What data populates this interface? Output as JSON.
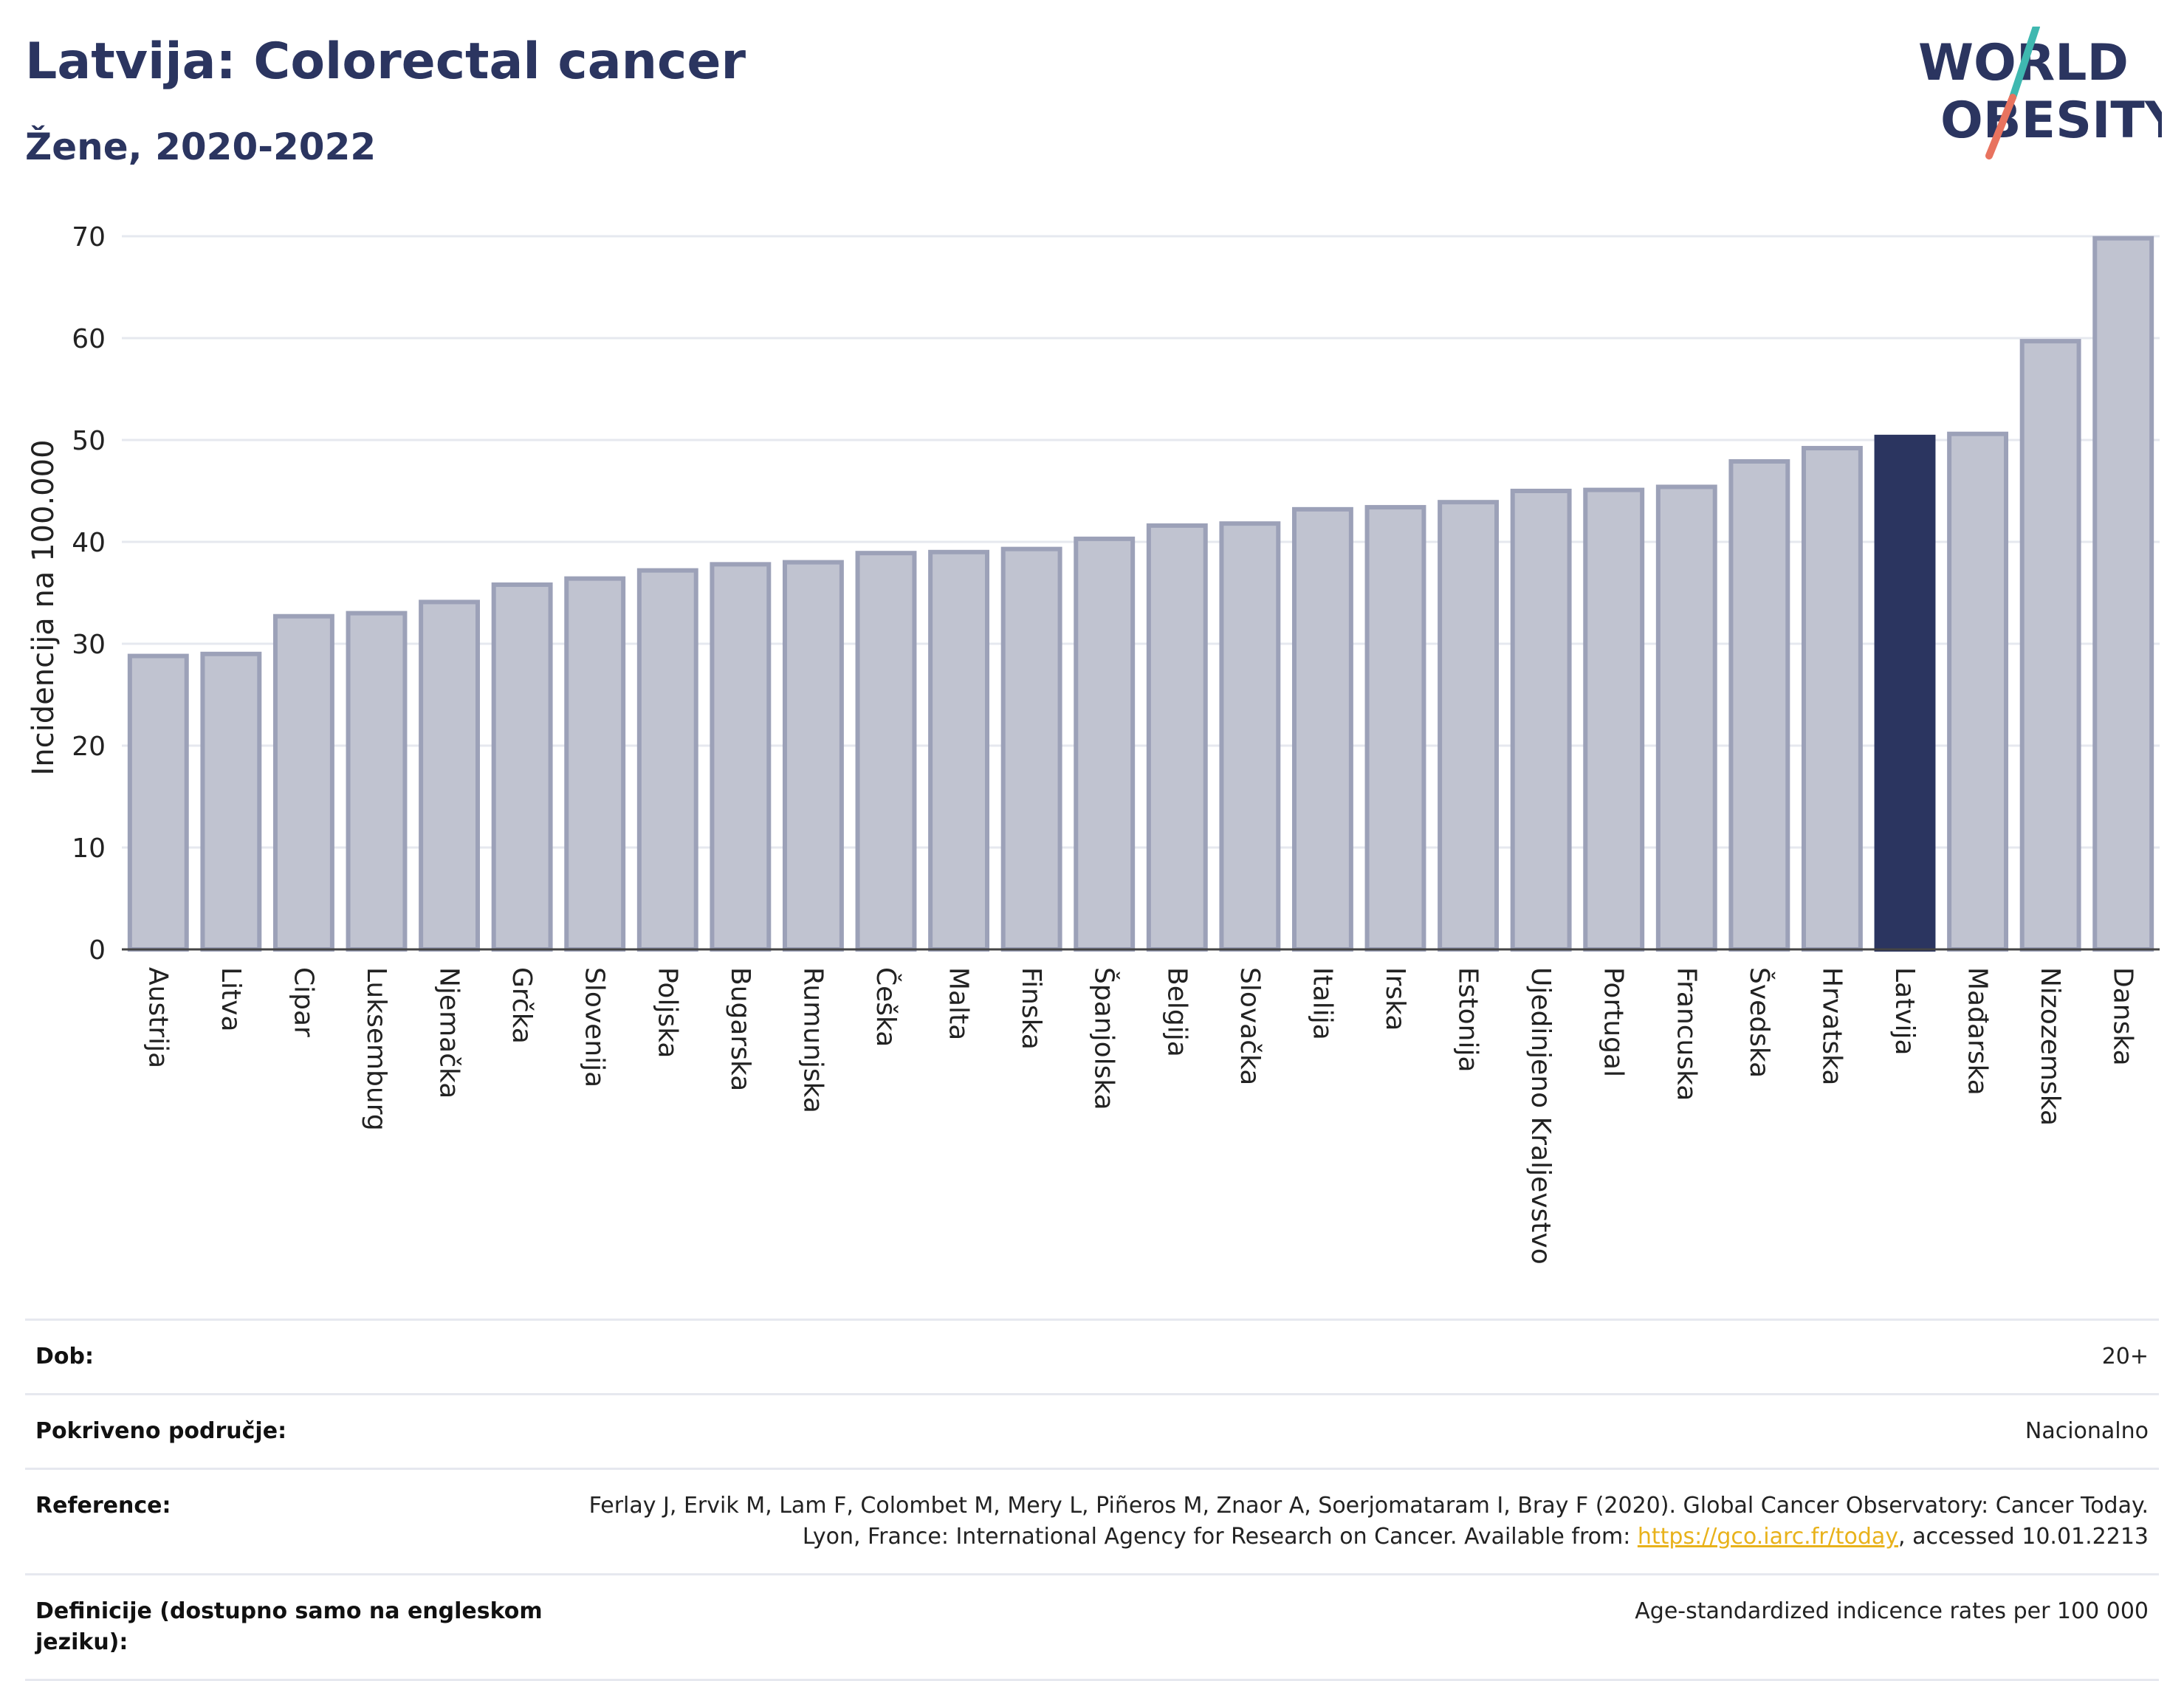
{
  "header": {
    "title": "Latvija: Colorectal cancer",
    "subtitle": "Žene, 2020-2022"
  },
  "logo": {
    "line1": "WORLD",
    "line2": "OBESITY",
    "icon": "world-obesity-logo",
    "colors": {
      "text": "#2b3560",
      "slash_top": "#3fb8b0",
      "slash_bottom": "#e8735f"
    }
  },
  "chart_data": {
    "type": "bar",
    "ylabel": "Incidencija na 100.000",
    "xlabel": "",
    "ylim": [
      0,
      70
    ],
    "yticks": [
      0,
      10,
      20,
      30,
      40,
      50,
      60,
      70
    ],
    "grid": true,
    "highlight": "Latvija",
    "colors": {
      "bar": "#c0c3d0",
      "bar_border": "#9ca1b8",
      "highlight": "#2b3560"
    },
    "categories": [
      "Austrija",
      "Litva",
      "Cipar",
      "Luksemburg",
      "Njemačka",
      "Grčka",
      "Slovenija",
      "Poljska",
      "Bugarska",
      "Rumunjska",
      "Češka",
      "Malta",
      "Finska",
      "Španjolska",
      "Belgija",
      "Slovačka",
      "Italija",
      "Irska",
      "Estonija",
      "Ujedinjeno Kraljevstvo",
      "Portugal",
      "Francuska",
      "Švedska",
      "Hrvatska",
      "Latvija",
      "Mađarska",
      "Nizozemska",
      "Danska"
    ],
    "values": [
      28.8,
      29.0,
      32.7,
      33.0,
      34.1,
      35.8,
      36.4,
      37.2,
      37.8,
      38.0,
      38.9,
      39.0,
      39.3,
      40.3,
      41.6,
      41.8,
      43.2,
      43.4,
      43.9,
      45.0,
      45.1,
      45.4,
      47.9,
      49.2,
      50.3,
      50.6,
      59.7,
      69.8
    ]
  },
  "meta": [
    {
      "label": "Dob:",
      "value": "20+"
    },
    {
      "label": "Pokriveno područje:",
      "value": "Nacionalno"
    },
    {
      "label": "Reference:",
      "value_before": "Ferlay J, Ervik M, Lam F, Colombet M, Mery L, Piñeros M, Znaor A, Soerjomataram I, Bray F (2020). Global Cancer Observatory: Cancer Today. Lyon, France: International Agency for Research on Cancer. Available from: ",
      "link": "https://gco.iarc.fr/today",
      "value_after": ", accessed 10.01.2213"
    },
    {
      "label": "Definicije (dostupno samo na engleskom jeziku):",
      "value": "Age-standardized indicence rates per 100 000"
    }
  ]
}
